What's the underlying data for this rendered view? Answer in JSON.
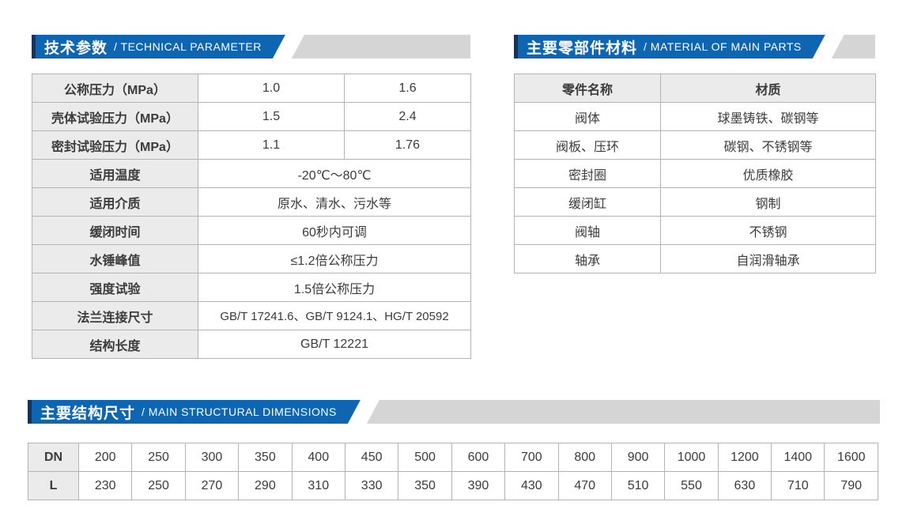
{
  "colors": {
    "ribbon_blue": "#0e66b3",
    "ribbon_navy_edge": "#16325f",
    "ribbon_gray_strip": "#d5d5d5",
    "table_label_bg": "#ebebeb",
    "table_border": "#b3b3b3",
    "text": "#3b3b3b"
  },
  "technical": {
    "title_zh": "技术参数",
    "title_en": "/ TECHNICAL PARAMETER",
    "rows": [
      {
        "label": "公称压力（MPa）",
        "values": [
          "1.0",
          "1.6"
        ]
      },
      {
        "label": "壳体试验压力（MPa）",
        "values": [
          "1.5",
          "2.4"
        ]
      },
      {
        "label": "密封试验压力（MPa）",
        "values": [
          "1.1",
          "1.76"
        ]
      },
      {
        "label": "适用温度",
        "value": "-20℃～80℃"
      },
      {
        "label": "适用介质",
        "value": "原水、清水、污水等"
      },
      {
        "label": "缓闭时间",
        "value": "60秒内可调"
      },
      {
        "label": "水锤峰值",
        "value": "≤1.2倍公称压力"
      },
      {
        "label": "强度试验",
        "value": "1.5倍公称压力"
      },
      {
        "label": "法兰连接尺寸",
        "value": "GB/T 17241.6、GB/T 9124.1、HG/T 20592",
        "long": true
      },
      {
        "label": "结构长度",
        "value": "GB/T 12221"
      }
    ]
  },
  "materials": {
    "title_zh": "主要零部件材料",
    "title_en": "/ MATERIAL OF MAIN PARTS",
    "headers": [
      "零件名称",
      "材质"
    ],
    "rows": [
      [
        "阀体",
        "球墨铸铁、碳钢等"
      ],
      [
        "阀板、压环",
        "碳钢、不锈钢等"
      ],
      [
        "密封圈",
        "优质橡胶"
      ],
      [
        "缓闭缸",
        "钢制"
      ],
      [
        "阀轴",
        "不锈钢"
      ],
      [
        "轴承",
        "自润滑轴承"
      ]
    ]
  },
  "dimensions": {
    "title_zh": "主要结构尺寸",
    "title_en": "/ MAIN STRUCTURAL DIMENSIONS",
    "rows": [
      {
        "label": "DN",
        "values": [
          "200",
          "250",
          "300",
          "350",
          "400",
          "450",
          "500",
          "600",
          "700",
          "800",
          "900",
          "1000",
          "1200",
          "1400",
          "1600"
        ]
      },
      {
        "label": "L",
        "values": [
          "230",
          "250",
          "270",
          "290",
          "310",
          "330",
          "350",
          "390",
          "430",
          "470",
          "510",
          "550",
          "630",
          "710",
          "790"
        ]
      }
    ]
  }
}
